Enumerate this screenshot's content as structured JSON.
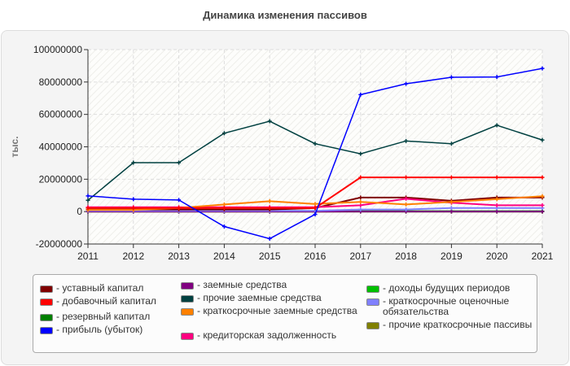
{
  "chart_data": {
    "type": "line",
    "title": "Динамика изменения пассивов",
    "ylabel": "тыс.",
    "ylim": [
      -20000000,
      100000000
    ],
    "yticks": [
      "-20000000",
      "0",
      "20000000",
      "40000000",
      "60000000",
      "80000000",
      "100000000"
    ],
    "x": [
      "2011",
      "2012",
      "2013",
      "2014",
      "2015",
      "2016",
      "2017",
      "2018",
      "2019",
      "2020",
      "2021"
    ],
    "grid": true,
    "legend_position": "bottom",
    "series": [
      {
        "name": "- уставный капитал",
        "color": "#800000",
        "values": [
          1300000,
          1300000,
          1300000,
          1300000,
          1300000,
          2200000,
          8700000,
          8700000,
          6700000,
          8700000,
          8700000
        ]
      },
      {
        "name": "- добавочный капитал",
        "color": "#ff0000",
        "values": [
          2200000,
          2200000,
          2200000,
          2200000,
          2200000,
          2200000,
          21100000,
          21100000,
          21100000,
          21100000,
          21100000
        ]
      },
      {
        "name": "- резервный капитал",
        "color": "#008000",
        "values": [
          300000,
          300000,
          300000,
          300000,
          300000,
          300000,
          300000,
          300000,
          300000,
          300000,
          300000
        ]
      },
      {
        "name": "- прибыль (убыток)",
        "color": "#0000ff",
        "values": [
          9700000,
          7700000,
          7200000,
          -9200000,
          -16700000,
          -1700000,
          72200000,
          78900000,
          82900000,
          83100000,
          88400000
        ]
      },
      {
        "name": "- заемные средства",
        "color": "#800080",
        "values": [
          0,
          0,
          0,
          0,
          0,
          0,
          0,
          0,
          0,
          0,
          0
        ]
      },
      {
        "name": "- прочие заемные средства",
        "color": "#004040",
        "values": [
          7000000,
          30200000,
          30200000,
          48400000,
          55800000,
          41900000,
          35700000,
          43600000,
          41900000,
          53300000,
          44200000
        ]
      },
      {
        "name": "- краткосрочные заемные средства",
        "color": "#ff8000",
        "values": [
          1000000,
          1000000,
          2200000,
          4400000,
          6400000,
          4700000,
          6000000,
          4400000,
          6000000,
          7700000,
          9500000
        ]
      },
      {
        "name": "- кредиторская задолженность",
        "color": "#ff0080",
        "values": [
          2700000,
          2700000,
          2700000,
          2700000,
          2700000,
          2700000,
          3900000,
          7900000,
          5500000,
          3900000,
          3900000
        ]
      },
      {
        "name": "- доходы будущих периодов",
        "color": "#00c000",
        "values": [
          0,
          0,
          0,
          0,
          0,
          0,
          0,
          0,
          0,
          0,
          0
        ]
      },
      {
        "name": "- краткосрочные оценочные обязательства",
        "color": "#8080ff",
        "values": [
          500000,
          500000,
          500000,
          500000,
          500000,
          500000,
          1300000,
          1300000,
          2200000,
          2200000,
          2200000
        ]
      },
      {
        "name": "- прочие краткосрочные пассивы",
        "color": "#808000",
        "values": [
          0,
          0,
          0,
          0,
          0,
          0,
          0,
          0,
          0,
          0,
          0
        ]
      }
    ]
  }
}
